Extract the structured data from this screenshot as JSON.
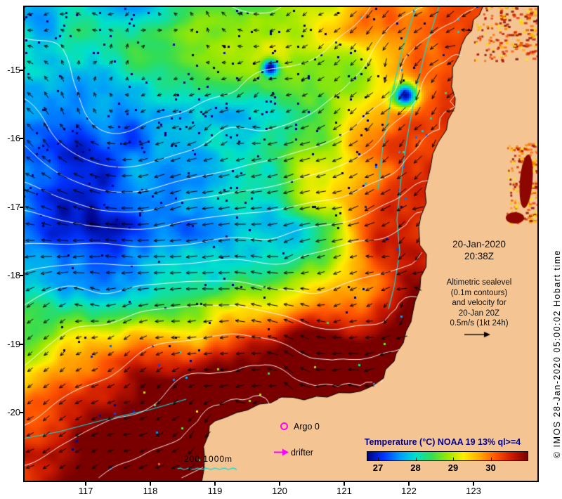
{
  "axes": {
    "lat_labels": [
      "-15",
      "-16",
      "-17",
      "-18",
      "-19",
      "-20"
    ],
    "lon_labels": [
      "117",
      "118",
      "119",
      "120",
      "121",
      "122",
      "123"
    ]
  },
  "annotations": {
    "datetime": [
      "20-Jan-2020",
      "20:38Z"
    ],
    "note": [
      "Altimetric sealevel",
      "(0.1m contours)",
      "and velocity for",
      "20-Jan 20Z",
      "0.5m/s (1kt 24h)"
    ],
    "argo": "Argo 0",
    "drifter": "drifter",
    "bathy_legend": "200 1000m",
    "copyright": "© IMOS 28-Jan-2020 05:00:02 Hobart time"
  },
  "colorbar": {
    "title": "Temperature (°C) NOAA 19 13% ql>=4",
    "tick_labels": [
      "27",
      "28",
      "29",
      "30"
    ],
    "range": [
      26.7,
      31.0
    ],
    "title_color": "#00008b",
    "stops": [
      "#000080",
      "#0033ff",
      "#0099ff",
      "#00e0cc",
      "#33dd55",
      "#99e800",
      "#ffee00",
      "#ffaa00",
      "#ff5500",
      "#cc1a00",
      "#7a0000"
    ]
  },
  "map": {
    "land_color": "#f4c492",
    "contour_color": "#ffffff",
    "bathy_color": "#00e0e0",
    "marker_color": "#ff00ff",
    "arrow_color": "#000000"
  },
  "chart_data": {
    "type": "heatmap",
    "title": "Sea surface temperature with altimetric sealevel contours and velocity vectors",
    "x_ticks": [
      117,
      118,
      119,
      120,
      121,
      122,
      123
    ],
    "y_ticks": [
      -15,
      -16,
      -17,
      -18,
      -19,
      -20
    ],
    "colorbar": {
      "label": "Temperature (°C) NOAA 19 13% ql>=4",
      "ticks": [
        27,
        28,
        29,
        30
      ],
      "range": [
        26.7,
        31.0
      ]
    },
    "observation_time": "20-Jan-2020 20:38Z",
    "overlays": [
      "altimetric sealevel 0.1m contours",
      "velocity vectors 0.5m/s = 1kt 24h",
      "bathymetry 200m and 1000m",
      "Argo floats (0)",
      "drifter track marker"
    ]
  }
}
